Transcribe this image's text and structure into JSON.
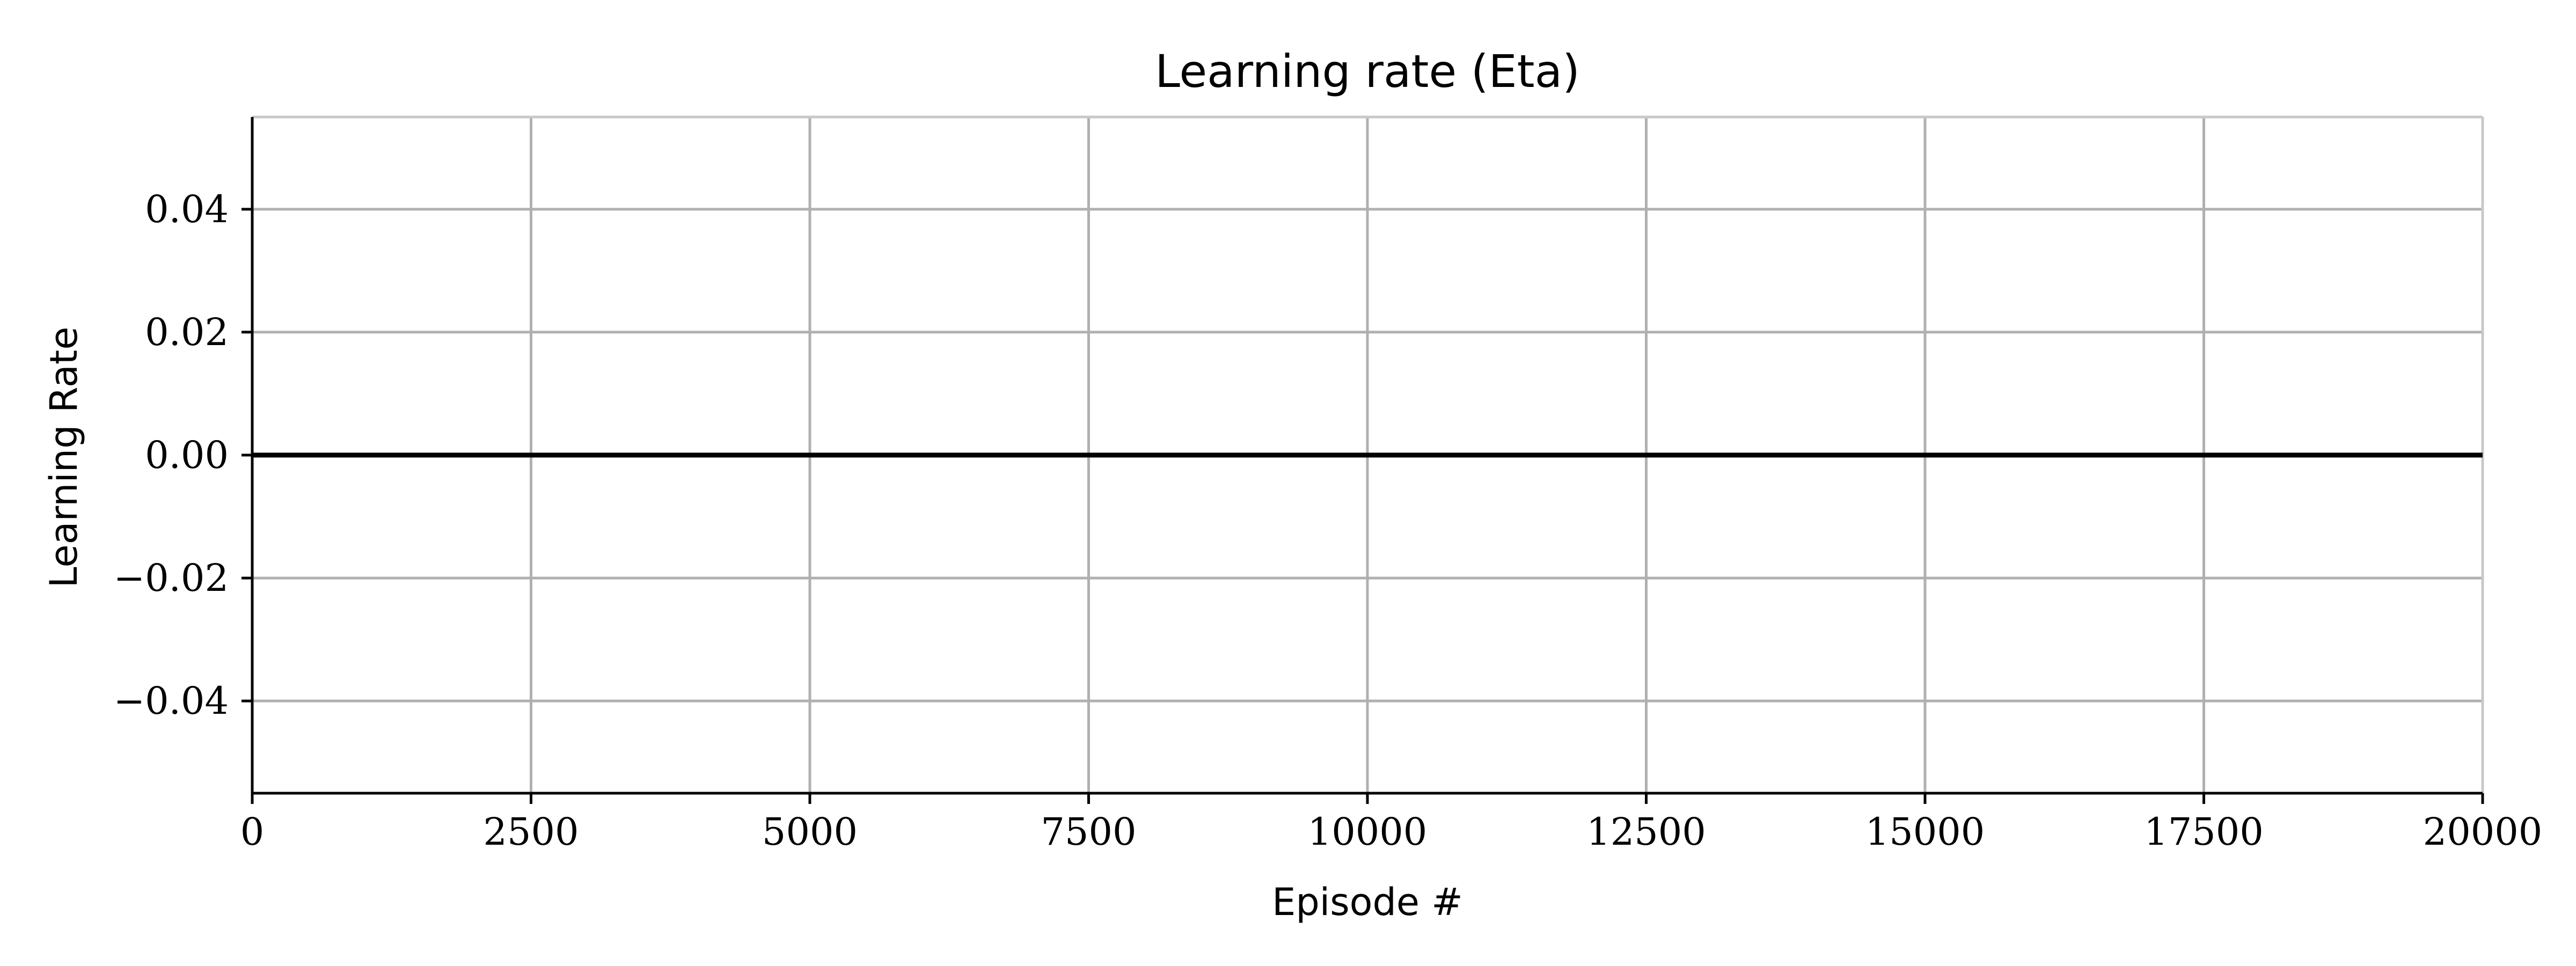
{
  "chart_data": {
    "type": "line",
    "title": "Learning rate (Eta)",
    "xlabel": "Episode #",
    "ylabel": "Learning Rate",
    "xlim": [
      0,
      20000
    ],
    "ylim": [
      -0.055,
      0.055
    ],
    "x_ticks": [
      0,
      2500,
      5000,
      7500,
      10000,
      12500,
      15000,
      17500,
      20000
    ],
    "x_tick_labels": [
      "0",
      "2500",
      "5000",
      "7500",
      "10000",
      "12500",
      "15000",
      "17500",
      "20000"
    ],
    "y_ticks": [
      -0.04,
      -0.02,
      0.0,
      0.02,
      0.04
    ],
    "y_tick_labels": [
      "−0.04",
      "−0.02",
      "0.00",
      "0.02",
      "0.04"
    ],
    "grid": true,
    "series": [
      {
        "color": "#000000",
        "x": [
          0,
          20000
        ],
        "y": [
          0.0,
          0.0
        ]
      }
    ]
  }
}
